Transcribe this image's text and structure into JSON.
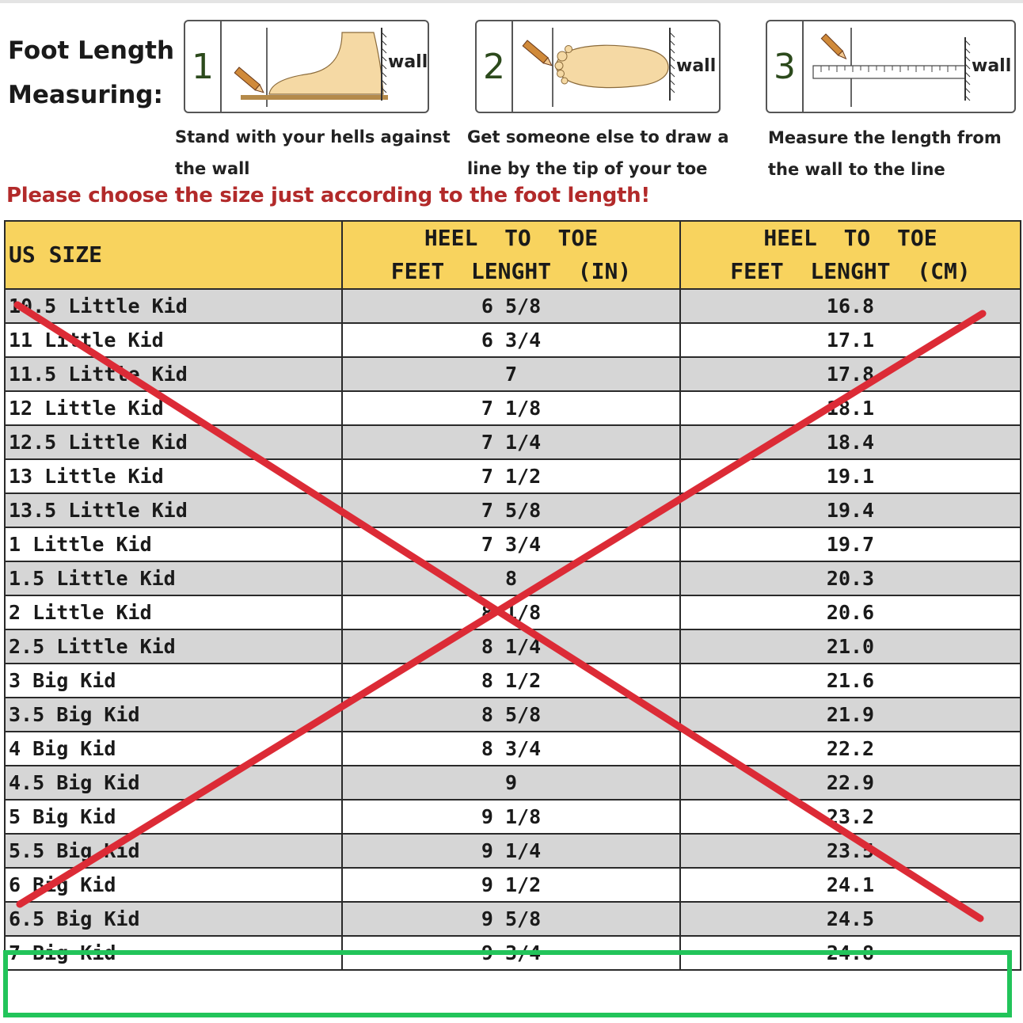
{
  "measure": {
    "title_line1": "Foot Length",
    "title_line2": "Measuring:",
    "steps": [
      {
        "number": "1",
        "wall_label": "wall",
        "caption_line1": "Stand with your hells against",
        "caption_line2": "the wall"
      },
      {
        "number": "2",
        "wall_label": "wall",
        "caption_line1": "Get someone else to draw a",
        "caption_line2": "line by the tip of your toe"
      },
      {
        "number": "3",
        "wall_label": "wall",
        "caption_line1": "Measure the length from",
        "caption_line2": "the wall to the line"
      }
    ]
  },
  "notice": "Please choose the size just according to the foot length!",
  "table": {
    "headers": {
      "size": "US SIZE",
      "in_line1": "HEEL  TO  TOE",
      "in_line2": "FEET  LENGHT  (IN)",
      "cm_line1": "HEEL  TO  TOE",
      "cm_line2": "FEET  LENGHT  (CM)"
    },
    "rows": [
      {
        "size": "10.5 Little Kid",
        "inches": "6 5/8",
        "cm": "16.8"
      },
      {
        "size": "11 Little Kid",
        "inches": "6 3/4",
        "cm": "17.1"
      },
      {
        "size": "11.5 Little Kid",
        "inches": "7",
        "cm": "17.8"
      },
      {
        "size": "12 Little Kid",
        "inches": "7 1/8",
        "cm": "18.1"
      },
      {
        "size": "12.5 Little Kid",
        "inches": "7 1/4",
        "cm": "18.4"
      },
      {
        "size": "13 Little Kid",
        "inches": "7 1/2",
        "cm": "19.1"
      },
      {
        "size": "13.5 Little Kid",
        "inches": "7 5/8",
        "cm": "19.4"
      },
      {
        "size": "1 Little Kid",
        "inches": "7 3/4",
        "cm": "19.7"
      },
      {
        "size": "1.5 Little Kid",
        "inches": "8",
        "cm": "20.3"
      },
      {
        "size": "2 Little Kid",
        "inches": "8 1/8",
        "cm": "20.6"
      },
      {
        "size": "2.5 Little Kid",
        "inches": "8 1/4",
        "cm": "21.0"
      },
      {
        "size": "3 Big Kid",
        "inches": "8 1/2",
        "cm": "21.6"
      },
      {
        "size": "3.5 Big Kid",
        "inches": "8 5/8",
        "cm": "21.9"
      },
      {
        "size": "4 Big Kid",
        "inches": "8 3/4",
        "cm": "22.2"
      },
      {
        "size": "4.5 Big Kid",
        "inches": "9",
        "cm": "22.9"
      },
      {
        "size": "5 Big Kid",
        "inches": "9 1/8",
        "cm": "23.2"
      },
      {
        "size": "5.5 Big Kid",
        "inches": "9 1/4",
        "cm": "23.5"
      },
      {
        "size": "6 Big Kid",
        "inches": "9 1/2",
        "cm": "24.1"
      },
      {
        "size": "6.5 Big Kid",
        "inches": "9 5/8",
        "cm": "24.5"
      },
      {
        "size": "7 Big Kid",
        "inches": "9 3/4",
        "cm": "24.8"
      }
    ]
  },
  "colors": {
    "header_bg": "#f8d35e",
    "row_shade": "#d6d6d6",
    "notice": "#b22a2a",
    "cross_mark": "#dc2b36",
    "highlight_box": "#22c45a"
  },
  "annotations": {
    "cross_out": "red X over rows",
    "highlight": "green box around 7 Big Kid row"
  }
}
